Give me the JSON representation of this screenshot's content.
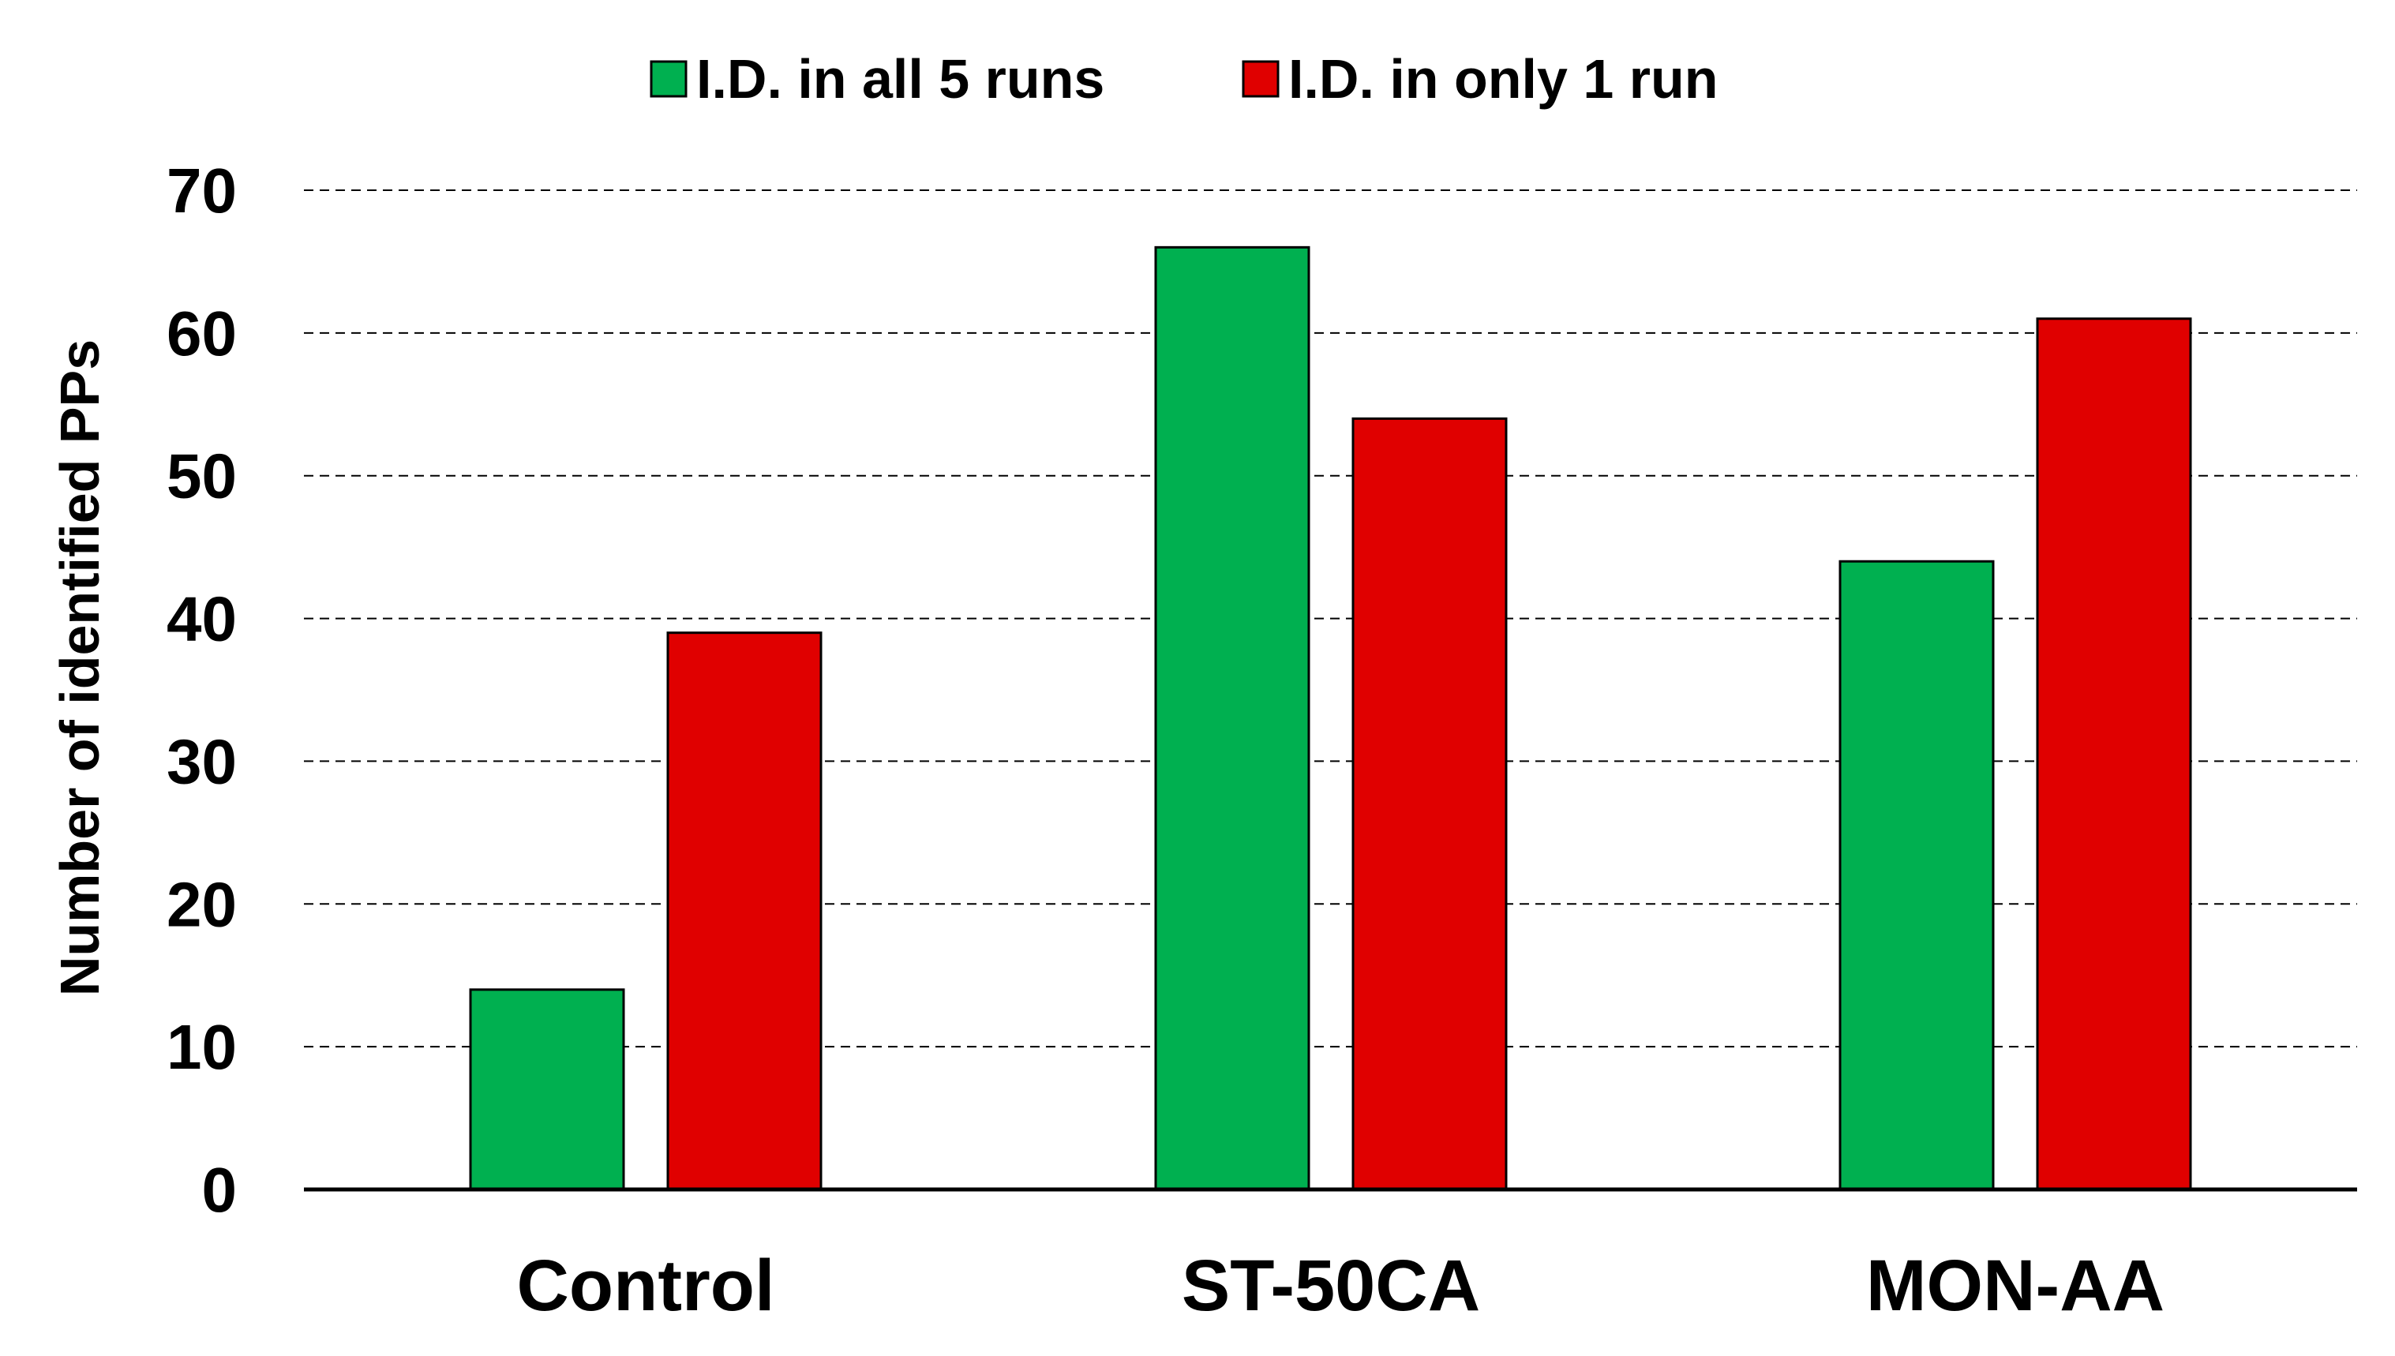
{
  "chart_data": {
    "type": "bar",
    "title": "",
    "xlabel": "",
    "ylabel": "Number of identified PPs",
    "ylim": [
      0,
      70
    ],
    "yticks": [
      0,
      10,
      20,
      30,
      40,
      50,
      60,
      70
    ],
    "ytick_labels": [
      "0",
      "10",
      "20",
      "30",
      "40",
      "50",
      "60",
      "70"
    ],
    "grid": true,
    "legend_position": "top-center",
    "categories": [
      "Control",
      "ST-50CA",
      "MON-AA"
    ],
    "series": [
      {
        "name": "I.D. in all 5 runs",
        "color": "#00b050",
        "values": [
          14,
          66,
          44
        ]
      },
      {
        "name": "I.D. in only 1 run",
        "color": "#e00000",
        "values": [
          39,
          54,
          61
        ]
      }
    ]
  }
}
